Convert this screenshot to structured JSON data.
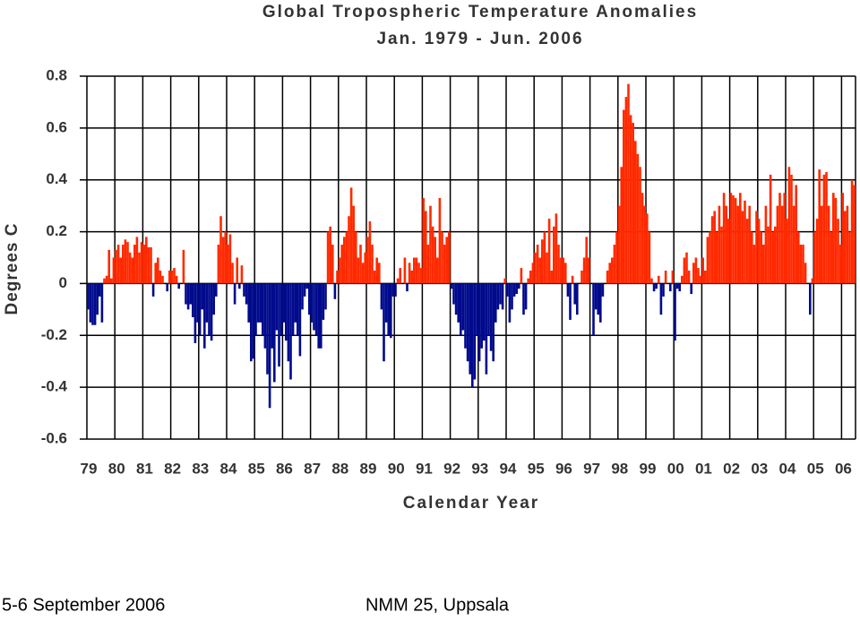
{
  "chart_data": {
    "type": "bar",
    "title": "Global Tropospheric Temperature Anomalies",
    "subtitle": "Jan. 1979 - Jun. 2006",
    "y_label": "Degrees C",
    "x_label": "Calendar Year",
    "positive_color": "#ff2a00",
    "negative_color": "#000a8c",
    "grid": true,
    "ylim": [
      -0.6,
      0.8
    ],
    "yticks": [
      0.8,
      0.6,
      0.4,
      0.2,
      0,
      -0.2,
      -0.4,
      -0.6
    ],
    "categories": [
      "79",
      null,
      null,
      null,
      null,
      null,
      null,
      null,
      null,
      null,
      null,
      null,
      "80",
      null,
      null,
      null,
      null,
      null,
      null,
      null,
      null,
      null,
      null,
      null,
      "81",
      null,
      null,
      null,
      null,
      null,
      null,
      null,
      null,
      null,
      null,
      null,
      "82",
      null,
      null,
      null,
      null,
      null,
      null,
      null,
      null,
      null,
      null,
      null,
      "83",
      null,
      null,
      null,
      null,
      null,
      null,
      null,
      null,
      null,
      null,
      null,
      "84",
      null,
      null,
      null,
      null,
      null,
      null,
      null,
      null,
      null,
      null,
      null,
      "85",
      null,
      null,
      null,
      null,
      null,
      null,
      null,
      null,
      null,
      null,
      null,
      "86",
      null,
      null,
      null,
      null,
      null,
      null,
      null,
      null,
      null,
      null,
      null,
      "87",
      null,
      null,
      null,
      null,
      null,
      null,
      null,
      null,
      null,
      null,
      null,
      "88",
      null,
      null,
      null,
      null,
      null,
      null,
      null,
      null,
      null,
      null,
      null,
      "89",
      null,
      null,
      null,
      null,
      null,
      null,
      null,
      null,
      null,
      null,
      null,
      "90",
      null,
      null,
      null,
      null,
      null,
      null,
      null,
      null,
      null,
      null,
      null,
      "91",
      null,
      null,
      null,
      null,
      null,
      null,
      null,
      null,
      null,
      null,
      null,
      "92",
      null,
      null,
      null,
      null,
      null,
      null,
      null,
      null,
      null,
      null,
      null,
      "93",
      null,
      null,
      null,
      null,
      null,
      null,
      null,
      null,
      null,
      null,
      null,
      "94",
      null,
      null,
      null,
      null,
      null,
      null,
      null,
      null,
      null,
      null,
      null,
      "95",
      null,
      null,
      null,
      null,
      null,
      null,
      null,
      null,
      null,
      null,
      null,
      "96",
      null,
      null,
      null,
      null,
      null,
      null,
      null,
      null,
      null,
      null,
      null,
      "97",
      null,
      null,
      null,
      null,
      null,
      null,
      null,
      null,
      null,
      null,
      null,
      "98",
      null,
      null,
      null,
      null,
      null,
      null,
      null,
      null,
      null,
      null,
      null,
      "99",
      null,
      null,
      null,
      null,
      null,
      null,
      null,
      null,
      null,
      null,
      null,
      "00",
      null,
      null,
      null,
      null,
      null,
      null,
      null,
      null,
      null,
      null,
      null,
      "01",
      null,
      null,
      null,
      null,
      null,
      null,
      null,
      null,
      null,
      null,
      null,
      "02",
      null,
      null,
      null,
      null,
      null,
      null,
      null,
      null,
      null,
      null,
      null,
      "03",
      null,
      null,
      null,
      null,
      null,
      null,
      null,
      null,
      null,
      null,
      null,
      "04",
      null,
      null,
      null,
      null,
      null,
      null,
      null,
      null,
      null,
      null,
      null,
      "05",
      null,
      null,
      null,
      null,
      null,
      null,
      null,
      null,
      null,
      null,
      null,
      "06",
      null,
      null,
      null,
      null,
      null
    ],
    "values": [
      -0.1,
      -0.15,
      -0.16,
      -0.16,
      -0.12,
      -0.05,
      -0.15,
      0.02,
      0.03,
      0.13,
      0.02,
      0.1,
      0.13,
      0.15,
      0.1,
      0.15,
      0.17,
      0.16,
      0.12,
      0.1,
      0.15,
      0.18,
      0.12,
      0.16,
      0.15,
      0.18,
      0.14,
      0.14,
      -0.05,
      0.08,
      0.1,
      0.05,
      0.03,
      0.0,
      -0.03,
      0.05,
      0.05,
      0.06,
      0.03,
      -0.02,
      0.0,
      0.13,
      -0.08,
      -0.1,
      -0.08,
      -0.13,
      -0.23,
      -0.15,
      -0.2,
      -0.1,
      -0.25,
      -0.15,
      -0.2,
      -0.22,
      -0.12,
      -0.05,
      0.15,
      0.26,
      0.18,
      0.2,
      0.15,
      0.19,
      0.08,
      -0.08,
      0.1,
      -0.02,
      0.07,
      -0.05,
      -0.08,
      -0.15,
      -0.3,
      -0.29,
      -0.2,
      -0.15,
      -0.15,
      -0.2,
      -0.25,
      -0.35,
      -0.48,
      -0.25,
      -0.38,
      -0.18,
      -0.32,
      -0.2,
      -0.15,
      -0.22,
      -0.3,
      -0.37,
      -0.2,
      -0.15,
      -0.2,
      -0.28,
      -0.1,
      -0.05,
      -0.02,
      -0.12,
      -0.15,
      -0.18,
      -0.2,
      -0.25,
      -0.25,
      -0.14,
      -0.1,
      0.2,
      0.22,
      0.15,
      -0.06,
      0.05,
      0.1,
      0.15,
      0.18,
      0.2,
      0.26,
      0.37,
      0.3,
      0.2,
      0.1,
      0.15,
      0.08,
      0.12,
      0.18,
      0.24,
      0.15,
      0.05,
      0.1,
      0.08,
      -0.1,
      -0.3,
      -0.15,
      -0.2,
      -0.21,
      -0.05,
      -0.05,
      0.02,
      0.06,
      0.0,
      0.1,
      -0.03,
      0.08,
      0.05,
      0.1,
      0.1,
      0.08,
      0.06,
      0.33,
      0.28,
      0.15,
      0.3,
      0.22,
      0.18,
      0.1,
      0.33,
      0.2,
      0.15,
      0.18,
      0.2,
      -0.02,
      -0.08,
      -0.12,
      -0.15,
      -0.2,
      -0.18,
      -0.25,
      -0.3,
      -0.35,
      -0.4,
      -0.37,
      -0.2,
      -0.3,
      -0.25,
      -0.22,
      -0.35,
      -0.2,
      -0.26,
      -0.3,
      -0.15,
      -0.1,
      -0.08,
      -0.1,
      0.02,
      -0.05,
      -0.15,
      -0.1,
      -0.05,
      -0.04,
      -0.02,
      0.06,
      -0.12,
      -0.1,
      0.02,
      0.05,
      0.08,
      0.12,
      0.15,
      0.1,
      0.17,
      0.2,
      0.12,
      0.25,
      0.05,
      0.22,
      0.27,
      0.15,
      0.1,
      0.1,
      0.08,
      -0.05,
      -0.14,
      0.03,
      -0.08,
      -0.12,
      0.0,
      0.05,
      0.1,
      0.18,
      0.1,
      0.0,
      -0.2,
      -0.1,
      -0.12,
      -0.15,
      -0.05,
      0.0,
      0.05,
      0.08,
      0.1,
      0.15,
      0.2,
      0.3,
      0.45,
      0.67,
      0.72,
      0.77,
      0.65,
      0.62,
      0.55,
      0.5,
      0.45,
      0.35,
      0.3,
      0.27,
      0.2,
      0.02,
      -0.03,
      -0.02,
      0.03,
      -0.12,
      -0.05,
      0.05,
      0.0,
      -0.03,
      0.05,
      -0.22,
      -0.02,
      -0.03,
      0.03,
      0.1,
      0.12,
      0.05,
      -0.04,
      0.08,
      0.1,
      0.06,
      0.03,
      0.1,
      0.05,
      0.18,
      0.2,
      0.26,
      0.28,
      0.2,
      0.3,
      0.22,
      0.35,
      0.3,
      0.25,
      0.35,
      0.34,
      0.33,
      0.3,
      0.35,
      0.28,
      0.32,
      0.25,
      0.3,
      0.2,
      0.15,
      0.28,
      0.25,
      0.2,
      0.15,
      0.3,
      0.22,
      0.42,
      0.2,
      0.22,
      0.3,
      0.35,
      0.3,
      0.35,
      0.25,
      0.45,
      0.42,
      0.3,
      0.38,
      0.2,
      0.15,
      0.15,
      0.08,
      0.0,
      -0.12,
      0.02,
      0.2,
      0.25,
      0.44,
      0.3,
      0.42,
      0.43,
      0.3,
      0.2,
      0.35,
      0.33,
      0.25,
      0.15,
      0.35,
      0.28,
      0.3,
      0.2,
      0.4,
      0.38
    ]
  },
  "footer": {
    "left": "5-6 September 2006",
    "center": "NMM 25, Uppsala"
  }
}
